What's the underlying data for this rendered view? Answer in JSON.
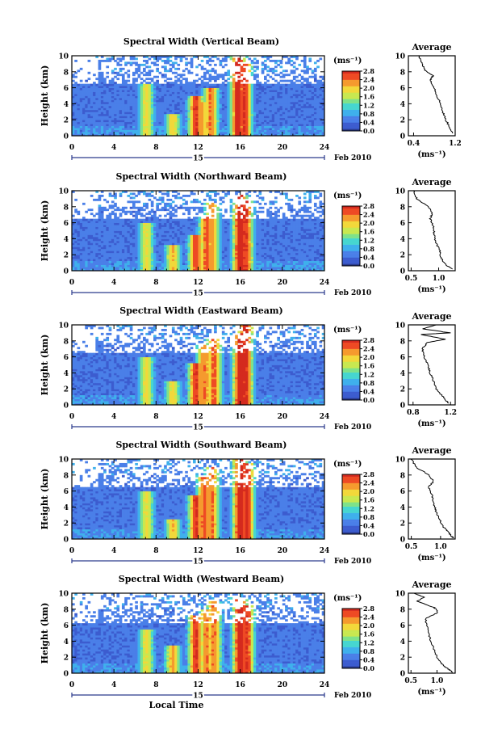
{
  "figure": {
    "date_label": "Feb 2010",
    "day_label": "15",
    "x_title": "Local Time",
    "colorbar_unit": "(ms⁻¹)",
    "colorbar_ticks": [
      "0.0",
      "0.4",
      "0.8",
      "1.2",
      "1.6",
      "2.0",
      "2.4",
      "2.8"
    ],
    "colors": {
      "scale": [
        "#2a3a8c",
        "#3c5ccf",
        "#4a7fe8",
        "#3fb0ec",
        "#46d6d0",
        "#7fe28a",
        "#c8e850",
        "#f2d83a",
        "#f59a2e",
        "#ee4a24",
        "#d42a1e"
      ],
      "background": "#ffffff",
      "line": "#000000"
    }
  },
  "chart_data": [
    {
      "type": "heatmap",
      "title": "Spectral Width (Vertical Beam)",
      "xlabel": "",
      "ylabel": "Height (km)",
      "xlim": [
        0,
        24
      ],
      "ylim": [
        0,
        10
      ],
      "x_ticks": [
        0,
        4,
        8,
        12,
        16,
        20,
        24
      ],
      "y_ticks": [
        0,
        2,
        4,
        6,
        8,
        10
      ],
      "colorbar_range": [
        0.0,
        2.8
      ],
      "note_top_layer_km": 6.4,
      "peaks": [
        [
          7.1,
          6.4,
          1.8
        ],
        [
          9.6,
          2.8,
          1.9
        ],
        [
          11.8,
          5.0,
          2.6
        ],
        [
          12.3,
          4.2,
          2.2
        ],
        [
          13.2,
          6.0,
          2.3
        ],
        [
          15.8,
          10.0,
          2.8
        ],
        [
          16.4,
          9.0,
          2.6
        ]
      ],
      "profile": {
        "title": "Average",
        "xlabel": "(ms⁻¹)",
        "xlim": [
          0.3,
          1.2
        ],
        "ylim": [
          0,
          10
        ],
        "x_ticks": [
          0.4,
          1.2
        ],
        "x_tick_labels": [
          "0.4",
          "1.2"
        ],
        "y_ticks": [
          0,
          2,
          4,
          6,
          8,
          10
        ],
        "points": [
          [
            0.5,
            10.0
          ],
          [
            0.56,
            9.0
          ],
          [
            0.62,
            8.2
          ],
          [
            0.78,
            7.5
          ],
          [
            0.72,
            7.0
          ],
          [
            0.8,
            6.0
          ],
          [
            0.85,
            5.0
          ],
          [
            0.92,
            4.0
          ],
          [
            0.96,
            3.0
          ],
          [
            1.02,
            2.0
          ],
          [
            1.1,
            1.0
          ],
          [
            1.15,
            0.3
          ]
        ]
      }
    },
    {
      "type": "heatmap",
      "title": "Spectral Width (Northward Beam)",
      "xlabel": "",
      "ylabel": "Height (km)",
      "xlim": [
        0,
        24
      ],
      "ylim": [
        0,
        10
      ],
      "x_ticks": [
        0,
        4,
        8,
        12,
        16,
        20,
        24
      ],
      "y_ticks": [
        0,
        2,
        4,
        6,
        8,
        10
      ],
      "colorbar_range": [
        0.0,
        2.8
      ],
      "note_top_layer_km": 6.6,
      "peaks": [
        [
          7.1,
          6.0,
          1.8
        ],
        [
          9.6,
          3.2,
          2.0
        ],
        [
          11.8,
          4.5,
          2.5
        ],
        [
          12.8,
          7.0,
          2.4
        ],
        [
          13.3,
          8.4,
          2.2
        ],
        [
          16.0,
          9.6,
          2.8
        ],
        [
          16.5,
          9.0,
          2.6
        ]
      ],
      "profile": {
        "title": "Average",
        "xlabel": "(ms⁻¹)",
        "xlim": [
          0.45,
          1.3
        ],
        "ylim": [
          0,
          10
        ],
        "x_ticks": [
          0.5,
          1.0
        ],
        "x_tick_labels": [
          "0.5",
          "1.0"
        ],
        "y_ticks": [
          0,
          2,
          4,
          6,
          8,
          10
        ],
        "points": [
          [
            0.55,
            10.0
          ],
          [
            0.6,
            9.0
          ],
          [
            0.82,
            8.0
          ],
          [
            0.88,
            7.2
          ],
          [
            0.85,
            6.5
          ],
          [
            0.9,
            5.5
          ],
          [
            0.92,
            4.5
          ],
          [
            0.95,
            3.5
          ],
          [
            1.02,
            2.5
          ],
          [
            1.05,
            1.5
          ],
          [
            1.12,
            0.8
          ],
          [
            1.25,
            0.2
          ]
        ]
      }
    },
    {
      "type": "heatmap",
      "title": "Spectral Width (Eastward Beam)",
      "xlabel": "",
      "ylabel": "Height (km)",
      "xlim": [
        0,
        24
      ],
      "ylim": [
        0,
        10
      ],
      "x_ticks": [
        0,
        4,
        8,
        12,
        16,
        20,
        24
      ],
      "y_ticks": [
        0,
        2,
        4,
        6,
        8,
        10
      ],
      "colorbar_range": [
        0.0,
        2.8
      ],
      "note_top_layer_km": 6.4,
      "peaks": [
        [
          7.1,
          6.0,
          1.8
        ],
        [
          9.6,
          3.0,
          1.9
        ],
        [
          11.8,
          5.2,
          2.6
        ],
        [
          12.6,
          7.5,
          2.3
        ],
        [
          13.5,
          8.5,
          2.4
        ],
        [
          16.0,
          9.0,
          2.8
        ],
        [
          16.5,
          10.0,
          2.7
        ]
      ],
      "profile": {
        "title": "Average",
        "xlabel": "(ms⁻¹)",
        "xlim": [
          0.75,
          1.25
        ],
        "ylim": [
          0,
          10
        ],
        "x_ticks": [
          0.8,
          1.2
        ],
        "x_tick_labels": [
          "0.8",
          "1.2"
        ],
        "y_ticks": [
          0,
          2,
          4,
          6,
          8,
          10
        ],
        "points": [
          [
            1.05,
            10.0
          ],
          [
            0.9,
            9.5
          ],
          [
            1.2,
            9.0
          ],
          [
            0.88,
            8.8
          ],
          [
            1.15,
            8.2
          ],
          [
            0.95,
            7.8
          ],
          [
            0.9,
            7.0
          ],
          [
            0.92,
            6.0
          ],
          [
            0.96,
            5.0
          ],
          [
            0.98,
            4.0
          ],
          [
            1.02,
            3.0
          ],
          [
            1.05,
            2.0
          ],
          [
            1.12,
            1.0
          ],
          [
            1.18,
            0.2
          ]
        ]
      }
    },
    {
      "type": "heatmap",
      "title": "Spectral Width (Southward Beam)",
      "xlabel": "",
      "ylabel": "Height (km)",
      "xlim": [
        0,
        24
      ],
      "ylim": [
        0,
        10
      ],
      "x_ticks": [
        0,
        4,
        8,
        12,
        16,
        20,
        24
      ],
      "y_ticks": [
        0,
        2,
        4,
        6,
        8,
        10
      ],
      "colorbar_range": [
        0.0,
        2.8
      ],
      "note_top_layer_km": 6.5,
      "peaks": [
        [
          7.1,
          6.0,
          1.8
        ],
        [
          9.6,
          2.5,
          2.0
        ],
        [
          11.8,
          5.5,
          2.6
        ],
        [
          12.6,
          8.0,
          2.4
        ],
        [
          13.3,
          9.0,
          2.3
        ],
        [
          16.0,
          10.0,
          2.8
        ],
        [
          16.6,
          9.5,
          2.7
        ]
      ],
      "profile": {
        "title": "Average",
        "xlabel": "(ms⁻¹)",
        "xlim": [
          0.45,
          1.25
        ],
        "ylim": [
          0,
          10
        ],
        "x_ticks": [
          0.5,
          1.0
        ],
        "x_tick_labels": [
          "0.5",
          "1.0"
        ],
        "y_ticks": [
          0,
          2,
          4,
          6,
          8,
          10
        ],
        "points": [
          [
            0.5,
            10.0
          ],
          [
            0.58,
            9.0
          ],
          [
            0.8,
            8.0
          ],
          [
            0.88,
            7.2
          ],
          [
            0.8,
            6.5
          ],
          [
            0.85,
            5.5
          ],
          [
            0.88,
            4.5
          ],
          [
            0.92,
            3.5
          ],
          [
            0.98,
            2.5
          ],
          [
            1.05,
            1.5
          ],
          [
            1.12,
            1.0
          ],
          [
            1.18,
            0.4
          ],
          [
            1.22,
            0.1
          ]
        ]
      }
    },
    {
      "type": "heatmap",
      "title": "Spectral Width (Westward Beam)",
      "xlabel": "Local Time",
      "ylabel": "Height (km)",
      "xlim": [
        0,
        24
      ],
      "ylim": [
        0,
        10
      ],
      "x_ticks": [
        0,
        4,
        8,
        12,
        16,
        20,
        24
      ],
      "y_ticks": [
        0,
        2,
        4,
        6,
        8,
        10
      ],
      "colorbar_range": [
        0.0,
        2.8
      ],
      "note_top_layer_km": 6.3,
      "peaks": [
        [
          7.1,
          5.5,
          1.8
        ],
        [
          9.6,
          3.5,
          2.1
        ],
        [
          11.8,
          7.2,
          2.6
        ],
        [
          12.8,
          8.0,
          2.3
        ],
        [
          13.5,
          9.0,
          2.3
        ],
        [
          16.0,
          9.6,
          2.8
        ],
        [
          16.6,
          8.5,
          2.6
        ]
      ],
      "profile": {
        "title": "Average",
        "xlabel": "(ms⁻¹)",
        "xlim": [
          0.45,
          1.35
        ],
        "ylim": [
          0,
          10
        ],
        "x_ticks": [
          0.5,
          1.0
        ],
        "x_tick_labels": [
          "0.5",
          "1.0"
        ],
        "y_ticks": [
          0,
          2,
          4,
          6,
          8,
          10
        ],
        "points": [
          [
            0.55,
            10.0
          ],
          [
            0.75,
            9.5
          ],
          [
            0.62,
            9.0
          ],
          [
            0.95,
            8.2
          ],
          [
            1.02,
            7.6
          ],
          [
            0.78,
            6.8
          ],
          [
            0.8,
            6.0
          ],
          [
            0.84,
            5.0
          ],
          [
            0.88,
            4.0
          ],
          [
            0.94,
            3.0
          ],
          [
            1.0,
            2.0
          ],
          [
            1.08,
            1.2
          ],
          [
            1.22,
            0.5
          ],
          [
            1.3,
            0.1
          ]
        ]
      }
    }
  ]
}
